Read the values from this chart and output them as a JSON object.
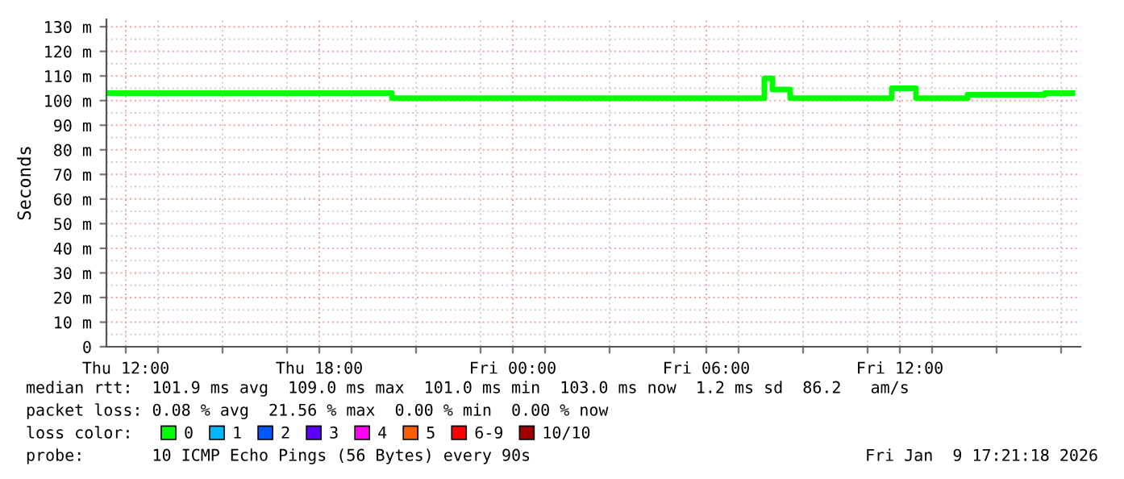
{
  "chart_data": {
    "type": "step",
    "ylabel": "Seconds",
    "legend_title": "loss color:",
    "x": [
      "2026-01-08T11:24",
      "2026-01-08T20:15",
      "2026-01-09T07:48",
      "2026-01-09T08:03",
      "2026-01-09T08:36",
      "2026-01-09T11:45",
      "2026-01-09T12:30",
      "2026-01-09T14:06",
      "2026-01-09T16:30",
      "2026-01-09T17:21"
    ],
    "series": [
      {
        "name": "0",
        "color": "#00ff00",
        "values": [
          103,
          101,
          109,
          104.5,
          101,
          105,
          101,
          102.4,
          103,
          103
        ]
      },
      {
        "name": "1",
        "color": "#00b8ff",
        "values": [
          null,
          null,
          null,
          null,
          null,
          null,
          null,
          null,
          null,
          null
        ]
      },
      {
        "name": "2",
        "color": "#0059ff",
        "values": [
          null,
          null,
          null,
          null,
          null,
          null,
          null,
          null,
          null,
          null
        ]
      },
      {
        "name": "3",
        "color": "#5e00ff",
        "values": [
          null,
          null,
          null,
          null,
          null,
          null,
          null,
          null,
          null,
          null
        ]
      },
      {
        "name": "4",
        "color": "#ff00f5",
        "values": [
          null,
          null,
          null,
          null,
          null,
          null,
          null,
          null,
          null,
          null
        ]
      },
      {
        "name": "5",
        "color": "#ff5e00",
        "values": [
          null,
          null,
          null,
          null,
          null,
          null,
          null,
          null,
          null,
          null
        ]
      },
      {
        "name": "6-9",
        "color": "#ff0000",
        "values": [
          null,
          null,
          null,
          null,
          null,
          null,
          null,
          null,
          null,
          null
        ]
      },
      {
        "name": "10/10",
        "color": "#a00000",
        "values": [
          null,
          null,
          null,
          null,
          null,
          null,
          null,
          null,
          null,
          null
        ]
      }
    ],
    "xlim": [
      "2026-01-08T11:24",
      "2026-01-09T17:36"
    ],
    "xticks": [
      {
        "value": "2026-01-08T12:00",
        "label": "Thu 12:00"
      },
      {
        "value": "2026-01-08T13:00",
        "label": null
      },
      {
        "value": "2026-01-08T15:00",
        "label": null
      },
      {
        "value": "2026-01-08T17:00",
        "label": null
      },
      {
        "value": "2026-01-08T18:00",
        "label": "Thu 18:00"
      },
      {
        "value": "2026-01-08T19:00",
        "label": null
      },
      {
        "value": "2026-01-08T21:00",
        "label": null
      },
      {
        "value": "2026-01-08T23:00",
        "label": null
      },
      {
        "value": "2026-01-09T00:00",
        "label": "Fri 00:00"
      },
      {
        "value": "2026-01-09T01:00",
        "label": null
      },
      {
        "value": "2026-01-09T03:00",
        "label": null
      },
      {
        "value": "2026-01-09T05:00",
        "label": null
      },
      {
        "value": "2026-01-09T06:00",
        "label": "Fri 06:00"
      },
      {
        "value": "2026-01-09T07:00",
        "label": null
      },
      {
        "value": "2026-01-09T09:00",
        "label": null
      },
      {
        "value": "2026-01-09T11:00",
        "label": null
      },
      {
        "value": "2026-01-09T12:00",
        "label": "Fri 12:00"
      },
      {
        "value": "2026-01-09T13:00",
        "label": null
      },
      {
        "value": "2026-01-09T15:00",
        "label": null
      },
      {
        "value": "2026-01-09T17:00",
        "label": null
      }
    ],
    "ylim": [
      0,
      133
    ],
    "yticks": [
      0,
      {
        "value": 10,
        "label": "10 m"
      },
      {
        "value": 20,
        "label": "20 m"
      },
      {
        "value": 30,
        "label": "30 m"
      },
      {
        "value": 40,
        "label": "40 m"
      },
      {
        "value": 50,
        "label": "50 m"
      },
      {
        "value": 60,
        "label": "60 m"
      },
      {
        "value": 70,
        "label": "70 m"
      },
      {
        "value": 80,
        "label": "80 m"
      },
      {
        "value": 90,
        "label": "90 m"
      },
      {
        "value": 100,
        "label": "100 m"
      },
      {
        "value": 110,
        "label": "110 m"
      },
      {
        "value": 120,
        "label": "120 m"
      },
      {
        "value": 130,
        "label": "130 m"
      }
    ],
    "grid": true,
    "legend": "bottom",
    "line_style": "solid",
    "marker": "none",
    "annotations": [
      "median rtt:  101.9 ms avg  109.0 ms max  101.0 ms min  103.0 ms now  1.2 ms sd  86.2   am/s",
      "packet loss: 0.08 % avg  21.56 % max  0.00 % min  0.00 % now",
      "probe:       10 ICMP Echo Pings (56 Bytes) every 90s",
      "Fri Jan  9 17:21:18 2026"
    ]
  }
}
